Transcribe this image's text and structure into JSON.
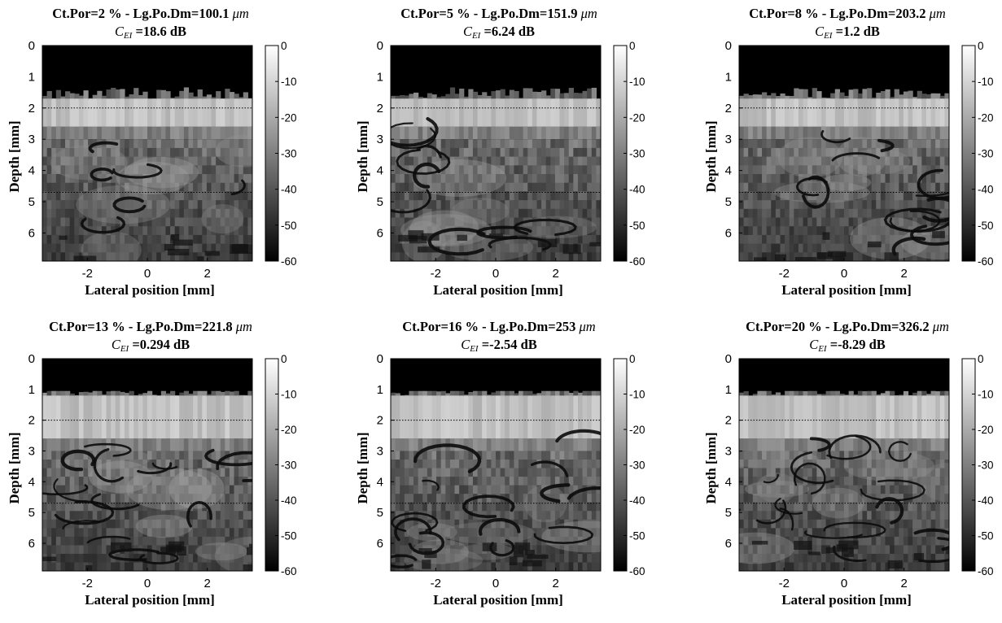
{
  "colorbar": {
    "ticks": [
      "0",
      "-10",
      "-20",
      "-30",
      "-40",
      "-50",
      "-60"
    ],
    "range_db": [
      -60,
      0
    ]
  },
  "chart_data": [
    {
      "type": "heatmap",
      "title_line1": "Ct.Por=2 % - Lg.Po.Dm=100.1",
      "title_unit": "μm",
      "title_line2_symbol": "C",
      "title_line2_sub": "EI",
      "title_line2_value": "=18.6 dB",
      "xlabel": "Lateral position [mm]",
      "ylabel": "Depth [mm]",
      "xticks": [
        "-2",
        "0",
        "2"
      ],
      "yticks": [
        "0",
        "1",
        "2",
        "3",
        "4",
        "5",
        "6"
      ],
      "xlim": [
        -3.5,
        3.5
      ],
      "ylim": [
        0,
        6.9
      ],
      "dotted_lines_mm": [
        2.0,
        4.7
      ],
      "colorbar_range_db": [
        -60,
        0
      ],
      "surface_depth_mm": 1.7,
      "pore_count": 6,
      "seed": 11
    },
    {
      "type": "heatmap",
      "title_line1": "Ct.Por=5 % - Lg.Po.Dm=151.9",
      "title_unit": "μm",
      "title_line2_symbol": "C",
      "title_line2_sub": "EI",
      "title_line2_value": "=6.24 dB",
      "xlabel": "Lateral position [mm]",
      "ylabel": "Depth [mm]",
      "xticks": [
        "-2",
        "0",
        "2"
      ],
      "yticks": [
        "0",
        "1",
        "2",
        "3",
        "4",
        "5",
        "6"
      ],
      "xlim": [
        -3.5,
        3.5
      ],
      "ylim": [
        0,
        6.9
      ],
      "dotted_lines_mm": [
        2.0,
        4.7
      ],
      "colorbar_range_db": [
        -60,
        0
      ],
      "surface_depth_mm": 1.7,
      "pore_count": 10,
      "seed": 23
    },
    {
      "type": "heatmap",
      "title_line1": "Ct.Por=8 % - Lg.Po.Dm=203.2",
      "title_unit": "μm",
      "title_line2_symbol": "C",
      "title_line2_sub": "EI",
      "title_line2_value": "=1.2 dB",
      "xlabel": "Lateral position [mm]",
      "ylabel": "Depth [mm]",
      "xticks": [
        "-2",
        "0",
        "2"
      ],
      "yticks": [
        "0",
        "1",
        "2",
        "3",
        "4",
        "5",
        "6"
      ],
      "xlim": [
        -3.5,
        3.5
      ],
      "ylim": [
        0,
        6.9
      ],
      "dotted_lines_mm": [
        2.0,
        4.7
      ],
      "colorbar_range_db": [
        -60,
        0
      ],
      "surface_depth_mm": 1.7,
      "pore_count": 12,
      "seed": 37
    },
    {
      "type": "heatmap",
      "title_line1": "Ct.Por=13 % - Lg.Po.Dm=221.8",
      "title_unit": "μm",
      "title_line2_symbol": "C",
      "title_line2_sub": "EI",
      "title_line2_value": "=0.294 dB",
      "xlabel": "Lateral position [mm]",
      "ylabel": "Depth [mm]",
      "xticks": [
        "-2",
        "0",
        "2"
      ],
      "yticks": [
        "0",
        "1",
        "2",
        "3",
        "4",
        "5",
        "6"
      ],
      "xlim": [
        -3.5,
        3.5
      ],
      "ylim": [
        0,
        6.9
      ],
      "dotted_lines_mm": [
        2.0,
        4.7
      ],
      "colorbar_range_db": [
        -60,
        0
      ],
      "surface_depth_mm": 1.2,
      "pore_count": 16,
      "seed": 41
    },
    {
      "type": "heatmap",
      "title_line1": "Ct.Por=16 % - Lg.Po.Dm=253",
      "title_unit": "μm",
      "title_line2_symbol": "C",
      "title_line2_sub": "EI",
      "title_line2_value": "=-2.54 dB",
      "xlabel": "Lateral position [mm]",
      "ylabel": "Depth [mm]",
      "xticks": [
        "-2",
        "0",
        "2"
      ],
      "yticks": [
        "0",
        "1",
        "2",
        "3",
        "4",
        "5",
        "6"
      ],
      "xlim": [
        -3.5,
        3.5
      ],
      "ylim": [
        0,
        6.9
      ],
      "dotted_lines_mm": [
        2.0,
        4.7
      ],
      "colorbar_range_db": [
        -60,
        0
      ],
      "surface_depth_mm": 1.2,
      "pore_count": 14,
      "seed": 53
    },
    {
      "type": "heatmap",
      "title_line1": "Ct.Por=20 % - Lg.Po.Dm=326.2",
      "title_unit": "μm",
      "title_line2_symbol": "C",
      "title_line2_sub": "EI",
      "title_line2_value": "=-8.29 dB",
      "xlabel": "Lateral position [mm]",
      "ylabel": "Depth [mm]",
      "xticks": [
        "-2",
        "0",
        "2"
      ],
      "yticks": [
        "0",
        "1",
        "2",
        "3",
        "4",
        "5",
        "6"
      ],
      "xlim": [
        -3.5,
        3.5
      ],
      "ylim": [
        0,
        6.9
      ],
      "dotted_lines_mm": [
        2.0,
        4.7
      ],
      "colorbar_range_db": [
        -60,
        0
      ],
      "surface_depth_mm": 1.2,
      "pore_count": 18,
      "seed": 67
    }
  ]
}
